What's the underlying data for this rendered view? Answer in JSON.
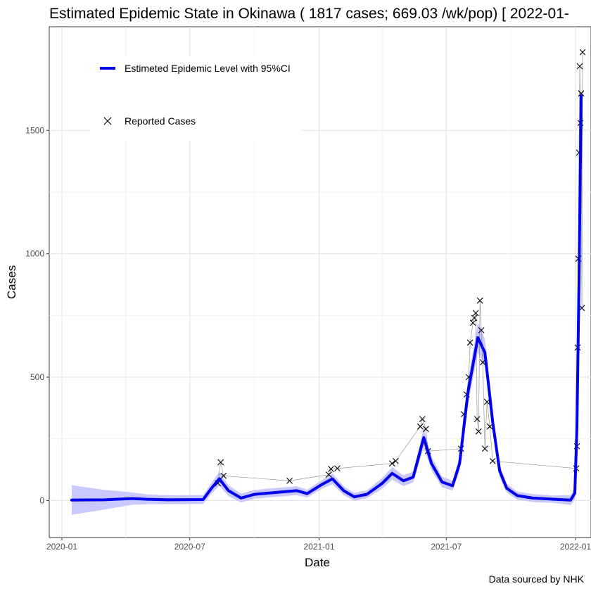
{
  "chart_data": {
    "type": "line",
    "title": "Estimated Epidemic State in Okinawa  ( 1817 cases; 669.03 /wk/pop) [ 2022-01-",
    "xlabel": "Date",
    "ylabel": "Cases",
    "caption": "Data sourced by NHK",
    "x_ticks": [
      "2020-01",
      "2020-07",
      "2021-01",
      "2021-07",
      "2022-01"
    ],
    "y_ticks": [
      0,
      500,
      1000,
      1500
    ],
    "xlim": [
      "2019-12-14",
      "2022-01-23"
    ],
    "ylim": [
      -150,
      1920
    ],
    "grid": true,
    "legend_position": "top-left",
    "colors": {
      "line": "#0000ee",
      "ci_band": "#c9c9ff",
      "points": "#000000"
    },
    "series": [
      {
        "name": "Estimeted Epidemic Level with 95%CI",
        "kind": "line",
        "points": [
          [
            "2020-01-15",
            2
          ],
          [
            "2020-03-01",
            3
          ],
          [
            "2020-04-10",
            8
          ],
          [
            "2020-05-01",
            5
          ],
          [
            "2020-06-01",
            3
          ],
          [
            "2020-07-20",
            4
          ],
          [
            "2020-08-01",
            50
          ],
          [
            "2020-08-12",
            88
          ],
          [
            "2020-08-25",
            40
          ],
          [
            "2020-09-12",
            10
          ],
          [
            "2020-10-01",
            25
          ],
          [
            "2020-10-20",
            30
          ],
          [
            "2020-11-10",
            35
          ],
          [
            "2020-11-30",
            40
          ],
          [
            "2020-12-15",
            28
          ],
          [
            "2021-01-05",
            65
          ],
          [
            "2021-01-20",
            88
          ],
          [
            "2021-02-05",
            40
          ],
          [
            "2021-02-20",
            15
          ],
          [
            "2021-03-10",
            25
          ],
          [
            "2021-04-01",
            70
          ],
          [
            "2021-04-15",
            110
          ],
          [
            "2021-05-01",
            80
          ],
          [
            "2021-05-15",
            95
          ],
          [
            "2021-05-30",
            255
          ],
          [
            "2021-06-10",
            150
          ],
          [
            "2021-06-25",
            75
          ],
          [
            "2021-07-10",
            60
          ],
          [
            "2021-07-20",
            150
          ],
          [
            "2021-08-01",
            440
          ],
          [
            "2021-08-15",
            660
          ],
          [
            "2021-08-25",
            600
          ],
          [
            "2021-09-05",
            320
          ],
          [
            "2021-09-15",
            120
          ],
          [
            "2021-09-25",
            50
          ],
          [
            "2021-10-10",
            20
          ],
          [
            "2021-11-01",
            10
          ],
          [
            "2021-12-01",
            5
          ],
          [
            "2021-12-25",
            2
          ],
          [
            "2021-12-31",
            30
          ],
          [
            "2022-01-03",
            300
          ],
          [
            "2022-01-06",
            900
          ],
          [
            "2022-01-09",
            1640
          ]
        ],
        "ci_half_width": [
          60,
          40,
          25,
          20,
          18,
          18,
          22,
          28,
          22,
          18,
          18,
          18,
          18,
          18,
          16,
          18,
          22,
          18,
          16,
          16,
          22,
          25,
          22,
          22,
          40,
          28,
          22,
          20,
          28,
          50,
          60,
          55,
          40,
          25,
          18,
          16,
          16,
          15,
          20,
          25,
          40,
          60,
          80
        ]
      },
      {
        "name": "Reported Cases",
        "kind": "scatter",
        "points": [
          [
            "2020-08-14",
            155
          ],
          [
            "2020-08-18",
            100
          ],
          [
            "2020-08-10",
            70
          ],
          [
            "2020-11-20",
            80
          ],
          [
            "2021-01-18",
            128
          ],
          [
            "2021-01-27",
            130
          ],
          [
            "2021-01-15",
            105
          ],
          [
            "2021-04-20",
            160
          ],
          [
            "2021-04-15",
            150
          ],
          [
            "2021-05-28",
            330
          ],
          [
            "2021-05-25",
            300
          ],
          [
            "2021-06-02",
            290
          ],
          [
            "2021-06-05",
            200
          ],
          [
            "2021-07-22",
            210
          ],
          [
            "2021-07-26",
            350
          ],
          [
            "2021-07-30",
            430
          ],
          [
            "2021-08-02",
            500
          ],
          [
            "2021-08-04",
            640
          ],
          [
            "2021-08-08",
            720
          ],
          [
            "2021-08-10",
            740
          ],
          [
            "2021-08-12",
            760
          ],
          [
            "2021-08-14",
            330
          ],
          [
            "2021-08-16",
            280
          ],
          [
            "2021-08-18",
            810
          ],
          [
            "2021-08-20",
            690
          ],
          [
            "2021-08-22",
            560
          ],
          [
            "2021-08-25",
            210
          ],
          [
            "2021-08-28",
            400
          ],
          [
            "2021-09-01",
            300
          ],
          [
            "2021-09-05",
            160
          ],
          [
            "2022-01-02",
            130
          ],
          [
            "2022-01-03",
            220
          ],
          [
            "2022-01-04",
            620
          ],
          [
            "2022-01-05",
            980
          ],
          [
            "2022-01-06",
            1410
          ],
          [
            "2022-01-07",
            1760
          ],
          [
            "2022-01-08",
            1530
          ],
          [
            "2022-01-09",
            1650
          ],
          [
            "2022-01-10",
            780
          ],
          [
            "2022-01-11",
            1817
          ]
        ]
      }
    ]
  }
}
